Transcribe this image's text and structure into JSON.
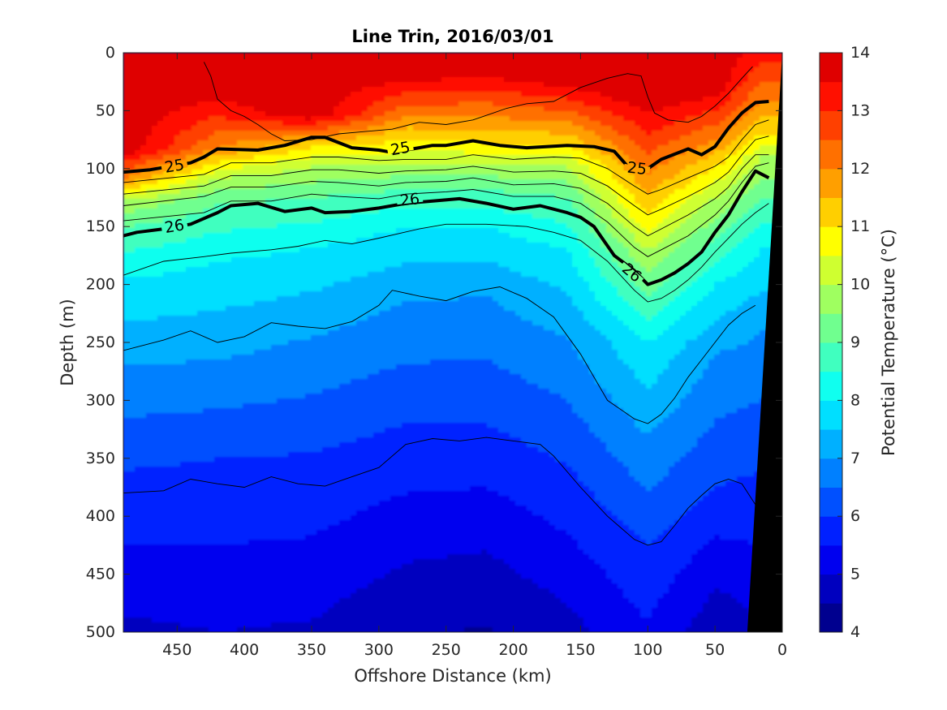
{
  "chart_data": {
    "type": "contourf",
    "title": "Line Trin, 2016/03/01",
    "xlabel": "Offshore Distance (km)",
    "ylabel": "Depth (m)",
    "colorbar_label": "Potential Temperature (°C)",
    "x_reversed": true,
    "y_reversed": true,
    "xlim": [
      490,
      0
    ],
    "ylim": [
      0,
      500
    ],
    "xticks": [
      450,
      400,
      350,
      300,
      250,
      200,
      150,
      100,
      50,
      0
    ],
    "yticks": [
      0,
      50,
      100,
      150,
      200,
      250,
      300,
      350,
      400,
      450,
      500
    ],
    "colorbar_range": [
      4,
      14
    ],
    "colorbar_ticks": [
      4,
      5,
      6,
      7,
      8,
      9,
      10,
      11,
      12,
      13,
      14
    ],
    "colorbar_step": 0.5,
    "color_levels": [
      "#00008f",
      "#0000bf",
      "#0000ef",
      "#0020ff",
      "#0050ff",
      "#0080ff",
      "#00b0ff",
      "#00dfff",
      "#10ffef",
      "#40ffbf",
      "#70ff8f",
      "#9fff60",
      "#cfff30",
      "#ffff00",
      "#ffcf00",
      "#ff9f00",
      "#ff7000",
      "#ff4000",
      "#ff1000",
      "#df0000"
    ],
    "temperature_profiles": [
      {
        "x": 490,
        "isotherms": [
          {
            "t": 13,
            "depth": 95
          },
          {
            "t": 12,
            "depth": 108
          },
          {
            "t": 11,
            "depth": 118
          },
          {
            "t": 10,
            "depth": 128
          },
          {
            "t": 9,
            "depth": 150
          },
          {
            "t": 8,
            "depth": 195
          },
          {
            "t": 7,
            "depth": 270
          },
          {
            "t": 6,
            "depth": 360
          },
          {
            "t": 5,
            "depth": 485
          }
        ]
      },
      {
        "x": 420,
        "isotherms": [
          {
            "t": 13,
            "depth": 55
          },
          {
            "t": 12,
            "depth": 82
          },
          {
            "t": 11,
            "depth": 95
          },
          {
            "t": 10,
            "depth": 108
          },
          {
            "t": 9,
            "depth": 130
          },
          {
            "t": 8,
            "depth": 180
          },
          {
            "t": 7,
            "depth": 265
          },
          {
            "t": 6,
            "depth": 350
          },
          {
            "t": 5,
            "depth": 500
          }
        ]
      },
      {
        "x": 350,
        "isotherms": [
          {
            "t": 12,
            "depth": 72
          },
          {
            "t": 11,
            "depth": 82
          },
          {
            "t": 10,
            "depth": 98
          },
          {
            "t": 9,
            "depth": 125
          },
          {
            "t": 8,
            "depth": 168
          },
          {
            "t": 7,
            "depth": 245
          },
          {
            "t": 6,
            "depth": 345
          },
          {
            "t": 5,
            "depth": 490
          }
        ]
      },
      {
        "x": 280,
        "isotherms": [
          {
            "t": 11,
            "depth": 75
          },
          {
            "t": 10,
            "depth": 95
          },
          {
            "t": 9,
            "depth": 118
          },
          {
            "t": 8,
            "depth": 150
          },
          {
            "t": 7,
            "depth": 215
          },
          {
            "t": 6,
            "depth": 320
          },
          {
            "t": 5,
            "depth": 440
          }
        ]
      },
      {
        "x": 220,
        "isotherms": [
          {
            "t": 12,
            "depth": 55
          },
          {
            "t": 11,
            "depth": 78
          },
          {
            "t": 10,
            "depth": 95
          },
          {
            "t": 9,
            "depth": 118
          },
          {
            "t": 8,
            "depth": 150
          },
          {
            "t": 7,
            "depth": 210
          },
          {
            "t": 6,
            "depth": 320
          },
          {
            "t": 5,
            "depth": 430
          }
        ]
      },
      {
        "x": 160,
        "isotherms": [
          {
            "t": 12,
            "depth": 60
          },
          {
            "t": 11,
            "depth": 80
          },
          {
            "t": 10,
            "depth": 98
          },
          {
            "t": 9,
            "depth": 125
          },
          {
            "t": 8,
            "depth": 170
          },
          {
            "t": 7,
            "depth": 245
          },
          {
            "t": 6,
            "depth": 355
          },
          {
            "t": 5,
            "depth": 475
          }
        ]
      },
      {
        "x": 100,
        "isotherms": [
          {
            "t": 12,
            "depth": 105
          },
          {
            "t": 11,
            "depth": 140
          },
          {
            "t": 10,
            "depth": 170
          },
          {
            "t": 9,
            "depth": 210
          },
          {
            "t": 8,
            "depth": 250
          },
          {
            "t": 7,
            "depth": 330
          },
          {
            "t": 6,
            "depth": 425
          }
        ]
      },
      {
        "x": 50,
        "isotherms": [
          {
            "t": 12,
            "depth": 75
          },
          {
            "t": 11,
            "depth": 100
          },
          {
            "t": 10,
            "depth": 125
          },
          {
            "t": 9,
            "depth": 160
          },
          {
            "t": 8,
            "depth": 200
          },
          {
            "t": 7,
            "depth": 260
          },
          {
            "t": 6,
            "depth": 375
          },
          {
            "t": 5,
            "depth": 460
          }
        ]
      },
      {
        "x": 15,
        "isotherms": [
          {
            "t": 12,
            "depth": 40
          },
          {
            "t": 11,
            "depth": 70
          },
          {
            "t": 10,
            "depth": 90
          },
          {
            "t": 9,
            "depth": 125
          },
          {
            "t": 8,
            "depth": 170
          },
          {
            "t": 7,
            "depth": 240
          },
          {
            "t": 6,
            "depth": 360
          }
        ]
      }
    ],
    "density_contours": [
      {
        "label": "25",
        "emphasized": true,
        "x": [
          490,
          470,
          440,
          430,
          420,
          390,
          370,
          350,
          340,
          320,
          300,
          290,
          270,
          260,
          250,
          230,
          210,
          190,
          160,
          140,
          125,
          115,
          100,
          90,
          70,
          60,
          50,
          40,
          30,
          20,
          10
        ],
        "depth": [
          103,
          101,
          95,
          90,
          83,
          84,
          80,
          73,
          73,
          82,
          84,
          86,
          82,
          80,
          80,
          76,
          80,
          82,
          80,
          81,
          85,
          98,
          100,
          92,
          83,
          88,
          81,
          65,
          52,
          43,
          42
        ],
        "label_positions": [
          {
            "x": 452,
            "depth": 98
          },
          {
            "x": 284,
            "depth": 83
          },
          {
            "x": 108,
            "depth": 100
          }
        ]
      },
      {
        "label": "26",
        "emphasized": true,
        "x": [
          490,
          480,
          460,
          440,
          420,
          410,
          390,
          370,
          350,
          340,
          320,
          300,
          280,
          260,
          240,
          220,
          200,
          180,
          160,
          150,
          140,
          125,
          110,
          100,
          90,
          80,
          70,
          60,
          50,
          40,
          30,
          20,
          10
        ],
        "depth": [
          158,
          155,
          152,
          148,
          138,
          132,
          130,
          137,
          134,
          138,
          137,
          134,
          130,
          128,
          126,
          130,
          135,
          132,
          138,
          142,
          150,
          175,
          188,
          200,
          196,
          190,
          182,
          172,
          155,
          140,
          120,
          102,
          108
        ],
        "label_positions": [
          {
            "x": 452,
            "depth": 150
          },
          {
            "x": 277,
            "depth": 127
          },
          {
            "x": 112,
            "depth": 190
          }
        ]
      }
    ],
    "thin_contours": [
      {
        "x": [
          490,
          430,
          410,
          380,
          350,
          330,
          300,
          280,
          250,
          230,
          200,
          170,
          150,
          130,
          110,
          100,
          90,
          70,
          50,
          40,
          30,
          20,
          10
        ],
        "depth": [
          112,
          105,
          95,
          95,
          90,
          90,
          93,
          92,
          92,
          88,
          92,
          90,
          91,
          100,
          115,
          122,
          118,
          108,
          98,
          90,
          75,
          62,
          58
        ]
      },
      {
        "x": [
          490,
          430,
          410,
          380,
          350,
          330,
          300,
          280,
          250,
          230,
          200,
          170,
          150,
          130,
          110,
          100,
          90,
          70,
          50,
          40,
          30,
          20,
          10
        ],
        "depth": [
          122,
          115,
          106,
          106,
          101,
          101,
          104,
          102,
          101,
          98,
          103,
          102,
          104,
          115,
          132,
          140,
          135,
          124,
          112,
          103,
          88,
          75,
          72
        ]
      },
      {
        "x": [
          490,
          430,
          410,
          380,
          350,
          330,
          300,
          280,
          250,
          230,
          200,
          170,
          150,
          130,
          110,
          100,
          90,
          70,
          50,
          40,
          30,
          20,
          10
        ],
        "depth": [
          132,
          124,
          116,
          116,
          111,
          112,
          115,
          112,
          111,
          108,
          114,
          113,
          117,
          130,
          150,
          158,
          152,
          140,
          126,
          116,
          100,
          88,
          88
        ]
      },
      {
        "x": [
          490,
          430,
          410,
          380,
          350,
          330,
          300,
          280,
          250,
          230,
          200,
          170,
          150,
          130,
          110,
          100,
          90,
          70,
          50,
          40,
          30,
          20,
          10
        ],
        "depth": [
          145,
          138,
          128,
          128,
          122,
          124,
          126,
          122,
          120,
          118,
          124,
          124,
          130,
          146,
          168,
          176,
          170,
          158,
          140,
          128,
          112,
          98,
          95
        ]
      },
      {
        "x": [
          490,
          460,
          430,
          410,
          380,
          360,
          340,
          320,
          300,
          270,
          250,
          220,
          190,
          170,
          150,
          130,
          110,
          100,
          90,
          80,
          70,
          60,
          50,
          40,
          30,
          20,
          10
        ],
        "depth": [
          192,
          180,
          176,
          173,
          170,
          167,
          162,
          165,
          160,
          152,
          148,
          148,
          150,
          155,
          162,
          180,
          205,
          215,
          212,
          205,
          196,
          185,
          172,
          160,
          148,
          138,
          130
        ]
      },
      {
        "x": [
          490,
          460,
          440,
          420,
          400,
          380,
          360,
          340,
          320,
          300,
          290,
          270,
          250,
          230,
          210,
          190,
          170,
          150,
          130,
          110,
          100,
          90,
          80,
          70,
          60,
          50,
          40,
          30,
          20
        ],
        "depth": [
          257,
          248,
          240,
          250,
          245,
          233,
          236,
          238,
          232,
          218,
          205,
          210,
          214,
          206,
          202,
          212,
          228,
          260,
          300,
          316,
          320,
          312,
          298,
          280,
          265,
          250,
          235,
          225,
          218
        ]
      },
      {
        "x": [
          490,
          460,
          440,
          420,
          400,
          380,
          360,
          340,
          320,
          300,
          280,
          260,
          240,
          220,
          200,
          180,
          170,
          150,
          130,
          110,
          100,
          90,
          80,
          70,
          60,
          50,
          40,
          30,
          20
        ],
        "depth": [
          380,
          378,
          368,
          372,
          375,
          366,
          372,
          374,
          366,
          358,
          338,
          333,
          335,
          332,
          335,
          338,
          348,
          375,
          400,
          420,
          425,
          422,
          408,
          393,
          382,
          372,
          368,
          372,
          390
        ]
      },
      {
        "x": [
          430,
          425,
          420,
          410,
          400,
          390,
          380,
          370,
          350,
          330,
          310,
          290,
          270,
          250,
          230,
          215,
          205,
          190,
          170,
          150,
          130,
          115,
          105,
          100,
          95,
          85,
          70,
          60,
          50,
          40,
          30,
          22
        ],
        "depth": [
          8,
          20,
          40,
          50,
          55,
          62,
          70,
          76,
          75,
          70,
          68,
          66,
          60,
          62,
          58,
          52,
          48,
          44,
          42,
          30,
          22,
          18,
          20,
          38,
          52,
          58,
          60,
          55,
          46,
          35,
          22,
          12
        ]
      }
    ],
    "land_mask": {
      "color": "#000000",
      "top_x": 0,
      "bottom_x": 26
    }
  }
}
